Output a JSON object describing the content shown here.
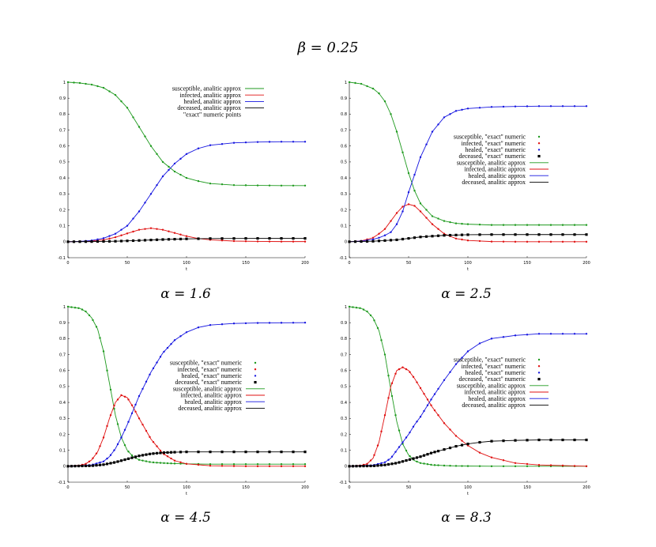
{
  "title": "β = 0.25",
  "colors": {
    "susceptible": "#1f9a1f",
    "infected": "#e01010",
    "healed": "#1515e0",
    "deceased": "#000000"
  },
  "chart_data": [
    {
      "type": "line",
      "caption": "α = 1.6",
      "xlabel": "t",
      "xlim": [
        0,
        200
      ],
      "ylim": [
        -0.1,
        1.0
      ],
      "xticks": [
        0,
        50,
        100,
        150,
        200
      ],
      "yticks": [
        -0.1,
        0,
        0.1,
        0.2,
        0.3,
        0.4,
        0.5,
        0.6,
        0.7,
        0.8,
        0.9,
        1
      ],
      "legend_position": "top-right",
      "legend": [
        {
          "label": "susceptible, analitic approx",
          "kind": "line",
          "key": "susceptible"
        },
        {
          "label": "infected, analitic approx",
          "kind": "line",
          "key": "infected"
        },
        {
          "label": "healed, analitic approx",
          "kind": "line",
          "key": "healed"
        },
        {
          "label": "deceased, analitic approx",
          "kind": "line",
          "key": "deceased"
        },
        {
          "label": "\"exact\" numeric  points",
          "kind": "none",
          "key": "deceased"
        }
      ],
      "points_x": [
        0,
        5,
        10,
        15,
        20,
        25,
        30,
        35,
        40,
        45,
        50,
        55,
        60,
        65,
        70,
        75,
        80,
        85,
        90,
        95,
        100,
        110,
        120,
        130,
        140,
        150,
        160,
        170,
        180,
        190,
        200
      ],
      "series": [
        {
          "name": "susceptible",
          "x": [
            0,
            10,
            20,
            30,
            40,
            50,
            60,
            70,
            80,
            90,
            100,
            110,
            120,
            140,
            160,
            180,
            200
          ],
          "values": [
            1.0,
            0.995,
            0.985,
            0.965,
            0.92,
            0.84,
            0.72,
            0.6,
            0.5,
            0.44,
            0.4,
            0.38,
            0.365,
            0.355,
            0.353,
            0.352,
            0.352
          ]
        },
        {
          "name": "infected",
          "x": [
            0,
            10,
            20,
            30,
            40,
            50,
            60,
            70,
            80,
            90,
            100,
            110,
            120,
            140,
            160,
            180,
            200
          ],
          "values": [
            0,
            0.002,
            0.005,
            0.012,
            0.028,
            0.052,
            0.075,
            0.085,
            0.075,
            0.055,
            0.035,
            0.02,
            0.012,
            0.004,
            0.002,
            0.001,
            0.001
          ]
        },
        {
          "name": "healed",
          "x": [
            0,
            10,
            20,
            30,
            40,
            50,
            60,
            70,
            80,
            90,
            100,
            110,
            120,
            140,
            160,
            180,
            200
          ],
          "values": [
            0,
            0.002,
            0.008,
            0.022,
            0.05,
            0.1,
            0.19,
            0.3,
            0.41,
            0.49,
            0.55,
            0.585,
            0.605,
            0.62,
            0.625,
            0.627,
            0.627
          ]
        },
        {
          "name": "deceased",
          "x": [
            0,
            20,
            40,
            60,
            80,
            100,
            120,
            160,
            200
          ],
          "values": [
            0,
            0.001,
            0.003,
            0.008,
            0.014,
            0.018,
            0.02,
            0.021,
            0.021
          ]
        }
      ]
    },
    {
      "type": "line",
      "caption": "α = 2.5",
      "xlabel": "t",
      "xlim": [
        0,
        200
      ],
      "ylim": [
        -0.1,
        1.0
      ],
      "xticks": [
        0,
        50,
        100,
        150,
        200
      ],
      "yticks": [
        -0.1,
        0,
        0.1,
        0.2,
        0.3,
        0.4,
        0.5,
        0.6,
        0.7,
        0.8,
        0.9,
        1
      ],
      "legend_position": "middle-right",
      "legend": [
        {
          "label": "susceptible, \"exact\" numeric",
          "kind": "point",
          "key": "susceptible"
        },
        {
          "label": "infected, \"exact\" numeric",
          "kind": "point",
          "key": "infected"
        },
        {
          "label": "healed, \"exact\" numeric",
          "kind": "point",
          "key": "healed"
        },
        {
          "label": "deceased, \"exact\" numeric",
          "kind": "point",
          "key": "deceased"
        },
        {
          "label": "susceptible, analitic approx",
          "kind": "line",
          "key": "susceptible"
        },
        {
          "label": "infected, analitic approx",
          "kind": "line",
          "key": "infected"
        },
        {
          "label": "healed, analitic approx",
          "kind": "line",
          "key": "healed"
        },
        {
          "label": "deceased, analitic approx",
          "kind": "line",
          "key": "deceased"
        }
      ],
      "points_x": [
        0,
        5,
        10,
        15,
        20,
        25,
        30,
        35,
        40,
        45,
        50,
        55,
        60,
        65,
        70,
        75,
        80,
        85,
        90,
        95,
        100,
        110,
        120,
        130,
        140,
        150,
        160,
        170,
        180,
        190,
        200
      ],
      "series": [
        {
          "name": "susceptible",
          "x": [
            0,
            10,
            20,
            25,
            30,
            35,
            40,
            45,
            50,
            55,
            60,
            70,
            80,
            90,
            100,
            120,
            140,
            160,
            200
          ],
          "values": [
            1.0,
            0.99,
            0.96,
            0.93,
            0.88,
            0.8,
            0.69,
            0.56,
            0.43,
            0.32,
            0.24,
            0.16,
            0.13,
            0.115,
            0.11,
            0.105,
            0.105,
            0.105,
            0.105
          ]
        },
        {
          "name": "infected",
          "x": [
            0,
            10,
            20,
            25,
            30,
            35,
            40,
            45,
            50,
            55,
            60,
            70,
            80,
            90,
            100,
            120,
            140,
            160,
            200
          ],
          "values": [
            0,
            0.005,
            0.025,
            0.05,
            0.08,
            0.13,
            0.18,
            0.22,
            0.235,
            0.225,
            0.19,
            0.11,
            0.05,
            0.02,
            0.008,
            0.001,
            0,
            0,
            0
          ]
        },
        {
          "name": "healed",
          "x": [
            0,
            10,
            20,
            25,
            30,
            35,
            40,
            45,
            50,
            55,
            60,
            70,
            80,
            90,
            100,
            120,
            140,
            160,
            200
          ],
          "values": [
            0,
            0.004,
            0.015,
            0.025,
            0.04,
            0.06,
            0.11,
            0.19,
            0.31,
            0.42,
            0.53,
            0.69,
            0.78,
            0.82,
            0.835,
            0.845,
            0.848,
            0.85,
            0.85
          ]
        },
        {
          "name": "deceased",
          "x": [
            0,
            20,
            40,
            60,
            80,
            100,
            120,
            160,
            200
          ],
          "values": [
            0,
            0.003,
            0.012,
            0.03,
            0.04,
            0.044,
            0.045,
            0.045,
            0.045
          ]
        }
      ]
    },
    {
      "type": "line",
      "caption": "α = 4.5",
      "xlabel": "t",
      "xlim": [
        0,
        200
      ],
      "ylim": [
        -0.1,
        1.0
      ],
      "xticks": [
        0,
        50,
        100,
        150,
        200
      ],
      "yticks": [
        -0.1,
        0,
        0.1,
        0.2,
        0.3,
        0.4,
        0.5,
        0.6,
        0.7,
        0.8,
        0.9,
        1
      ],
      "legend_position": "middle-right",
      "legend": [
        {
          "label": "susceptible, \"exact\" numeric",
          "kind": "point",
          "key": "susceptible"
        },
        {
          "label": "infected, \"exact\" numeric",
          "kind": "point",
          "key": "infected"
        },
        {
          "label": "healed, \"exact\" numeric",
          "kind": "point",
          "key": "healed"
        },
        {
          "label": "deceased, \"exact\" numeric",
          "kind": "point",
          "key": "deceased"
        },
        {
          "label": "susceptible, analitic approx",
          "kind": "line",
          "key": "susceptible"
        },
        {
          "label": "infected, analitic approx",
          "kind": "line",
          "key": "infected"
        },
        {
          "label": "healed, analitic approx",
          "kind": "line",
          "key": "healed"
        },
        {
          "label": "deceased, analitic approx",
          "kind": "line",
          "key": "deceased"
        }
      ],
      "points_x": [
        0,
        3,
        6,
        9,
        12,
        15,
        18,
        21,
        24,
        27,
        30,
        33,
        36,
        39,
        42,
        45,
        48,
        51,
        54,
        57,
        60,
        63,
        66,
        69,
        72,
        75,
        78,
        81,
        84,
        87,
        90,
        95,
        100,
        110,
        120,
        130,
        140,
        150,
        160,
        170,
        180,
        190,
        200
      ],
      "series": [
        {
          "name": "susceptible",
          "x": [
            0,
            10,
            15,
            20,
            25,
            30,
            35,
            40,
            45,
            50,
            55,
            60,
            70,
            80,
            90,
            100,
            120,
            150,
            200
          ],
          "values": [
            1.0,
            0.99,
            0.97,
            0.93,
            0.86,
            0.72,
            0.52,
            0.32,
            0.18,
            0.1,
            0.06,
            0.04,
            0.025,
            0.02,
            0.017,
            0.015,
            0.013,
            0.013,
            0.013
          ]
        },
        {
          "name": "infected",
          "x": [
            0,
            10,
            15,
            20,
            25,
            30,
            35,
            40,
            45,
            50,
            55,
            60,
            70,
            80,
            90,
            100,
            120,
            150,
            200
          ],
          "values": [
            0,
            0.005,
            0.015,
            0.04,
            0.09,
            0.18,
            0.3,
            0.4,
            0.445,
            0.43,
            0.37,
            0.3,
            0.17,
            0.08,
            0.035,
            0.015,
            0.003,
            0,
            0
          ]
        },
        {
          "name": "healed",
          "x": [
            0,
            10,
            20,
            30,
            35,
            40,
            45,
            50,
            55,
            60,
            70,
            80,
            90,
            100,
            110,
            120,
            140,
            160,
            200
          ],
          "values": [
            0,
            0.002,
            0.008,
            0.03,
            0.06,
            0.11,
            0.18,
            0.26,
            0.35,
            0.44,
            0.59,
            0.71,
            0.79,
            0.84,
            0.87,
            0.885,
            0.895,
            0.898,
            0.9
          ]
        },
        {
          "name": "deceased",
          "x": [
            0,
            20,
            30,
            40,
            50,
            60,
            70,
            80,
            90,
            100,
            120,
            160,
            200
          ],
          "values": [
            0,
            0.003,
            0.01,
            0.025,
            0.045,
            0.065,
            0.078,
            0.085,
            0.088,
            0.09,
            0.09,
            0.09,
            0.09
          ]
        }
      ]
    },
    {
      "type": "line",
      "caption": "α = 8.3",
      "xlabel": "t",
      "xlim": [
        0,
        200
      ],
      "ylim": [
        -0.1,
        1.0
      ],
      "xticks": [
        0,
        50,
        100,
        150,
        200
      ],
      "yticks": [
        -0.1,
        0,
        0.1,
        0.2,
        0.3,
        0.4,
        0.5,
        0.6,
        0.7,
        0.8,
        0.9,
        1
      ],
      "legend_position": "middle-right",
      "legend": [
        {
          "label": "susceptible, \"exact\" numeric",
          "kind": "point",
          "key": "susceptible"
        },
        {
          "label": "infected, \"exact\" numeric",
          "kind": "point",
          "key": "infected"
        },
        {
          "label": "healed, \"exact\" numeric",
          "kind": "point",
          "key": "healed"
        },
        {
          "label": "deceased, \"exact\" numeric",
          "kind": "point",
          "key": "deceased"
        },
        {
          "label": "susceptible, analitic approx",
          "kind": "line",
          "key": "susceptible"
        },
        {
          "label": "infected, analitic approx",
          "kind": "line",
          "key": "infected"
        },
        {
          "label": "healed, analitic approx",
          "kind": "line",
          "key": "healed"
        },
        {
          "label": "deceased, analitic approx",
          "kind": "line",
          "key": "deceased"
        }
      ],
      "points_x": [
        0,
        3,
        6,
        9,
        12,
        15,
        18,
        21,
        24,
        27,
        30,
        33,
        36,
        39,
        42,
        45,
        48,
        51,
        54,
        57,
        60,
        63,
        66,
        69,
        72,
        75,
        80,
        85,
        90,
        95,
        100,
        110,
        120,
        130,
        140,
        150,
        160,
        170,
        180,
        190,
        200
      ],
      "series": [
        {
          "name": "susceptible",
          "x": [
            0,
            10,
            15,
            20,
            25,
            30,
            35,
            40,
            45,
            50,
            55,
            60,
            70,
            80,
            90,
            100,
            120,
            150,
            200
          ],
          "values": [
            1.0,
            0.99,
            0.97,
            0.93,
            0.85,
            0.7,
            0.48,
            0.28,
            0.14,
            0.07,
            0.035,
            0.02,
            0.008,
            0.004,
            0.002,
            0.001,
            0,
            0,
            0
          ]
        },
        {
          "name": "infected",
          "x": [
            0,
            10,
            15,
            20,
            25,
            30,
            35,
            40,
            45,
            50,
            55,
            60,
            70,
            80,
            90,
            100,
            110,
            120,
            140,
            160,
            200
          ],
          "values": [
            0,
            0.005,
            0.015,
            0.05,
            0.15,
            0.32,
            0.5,
            0.6,
            0.62,
            0.6,
            0.55,
            0.49,
            0.37,
            0.27,
            0.19,
            0.13,
            0.085,
            0.055,
            0.02,
            0.008,
            0
          ]
        },
        {
          "name": "healed",
          "x": [
            0,
            10,
            20,
            30,
            35,
            40,
            45,
            50,
            55,
            60,
            70,
            80,
            90,
            100,
            110,
            120,
            140,
            160,
            200
          ],
          "values": [
            0,
            0.002,
            0.006,
            0.025,
            0.05,
            0.1,
            0.15,
            0.2,
            0.26,
            0.31,
            0.43,
            0.54,
            0.64,
            0.72,
            0.77,
            0.8,
            0.82,
            0.83,
            0.83
          ]
        },
        {
          "name": "deceased",
          "x": [
            0,
            20,
            30,
            40,
            50,
            60,
            70,
            80,
            90,
            100,
            110,
            120,
            140,
            160,
            200
          ],
          "values": [
            0,
            0.002,
            0.008,
            0.02,
            0.04,
            0.06,
            0.085,
            0.105,
            0.125,
            0.14,
            0.15,
            0.157,
            0.162,
            0.165,
            0.165
          ]
        }
      ]
    }
  ]
}
